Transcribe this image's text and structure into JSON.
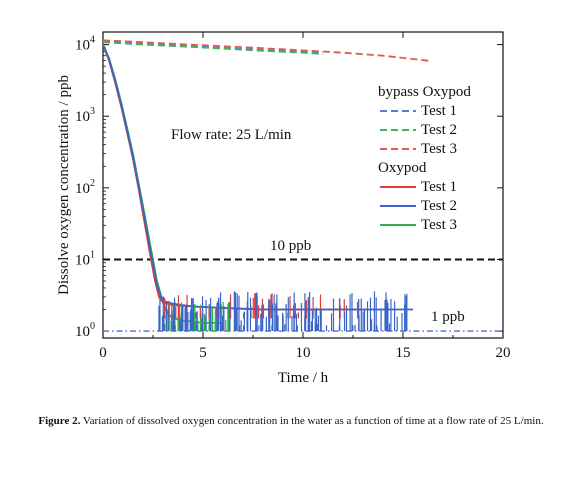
{
  "chart_data": {
    "type": "line",
    "xlabel": "Time / h",
    "ylabel": "Dissolve oxygen concentration / ppb",
    "xlim": [
      0,
      20
    ],
    "ylim": [
      0.8,
      15000
    ],
    "yscale": "log",
    "xticks": [
      0,
      5,
      10,
      15,
      20
    ],
    "yticks": [
      {
        "value": 1,
        "base": "10",
        "exp": "0"
      },
      {
        "value": 10,
        "base": "10",
        "exp": "1"
      },
      {
        "value": 100,
        "base": "10",
        "exp": "2"
      },
      {
        "value": 1000,
        "base": "10",
        "exp": "3"
      },
      {
        "value": 10000,
        "base": "10",
        "exp": "4"
      }
    ],
    "grid": false,
    "legend_position": "top-right",
    "annotations": {
      "flow_rate": "Flow rate: 25 L/min",
      "ten_ppb": "10 ppb",
      "one_ppb": "1 ppb"
    },
    "reference_lines": [
      {
        "y": 10,
        "color": "#111111",
        "style": "dashed"
      },
      {
        "y": 1,
        "color": "#4a6fd6",
        "style": "dashdot"
      }
    ],
    "legend_groups": [
      {
        "title": "bypass Oxypod",
        "entries": [
          {
            "name": "Test 1",
            "color": "#4f7fd0",
            "style": "dashed"
          },
          {
            "name": "Test 2",
            "color": "#3fb25a",
            "style": "dashed"
          },
          {
            "name": "Test 3",
            "color": "#e0584f",
            "style": "dashed"
          }
        ]
      },
      {
        "title": "Oxypod",
        "entries": [
          {
            "name": "Test 1",
            "color": "#e03b3b",
            "style": "solid"
          },
          {
            "name": "Test 2",
            "color": "#3a64c8",
            "style": "solid"
          },
          {
            "name": "Test 3",
            "color": "#2fae4a",
            "style": "solid"
          }
        ]
      }
    ],
    "series": [
      {
        "group": "bypass Oxypod",
        "name": "Test 1",
        "color": "#4f7fd0",
        "style": "dashed",
        "x": [
          0,
          2,
          4,
          6,
          8,
          10,
          11
        ],
        "y": [
          11000,
          10200,
          9600,
          9000,
          8400,
          7900,
          7600
        ]
      },
      {
        "group": "bypass Oxypod",
        "name": "Test 2",
        "color": "#3fb25a",
        "style": "dashed",
        "x": [
          0,
          2,
          4,
          6,
          8,
          10,
          11
        ],
        "y": [
          10800,
          10000,
          9400,
          8800,
          8200,
          7700,
          7400
        ]
      },
      {
        "group": "bypass Oxypod",
        "name": "Test 3",
        "color": "#e0584f",
        "style": "dashed",
        "x": [
          0,
          2,
          4,
          6,
          8,
          10,
          12,
          14,
          16.4
        ],
        "y": [
          11500,
          10800,
          10100,
          9500,
          8900,
          8300,
          7700,
          7000,
          5900
        ]
      },
      {
        "group": "Oxypod",
        "name": "Test 1",
        "color": "#e03b3b",
        "style": "solid",
        "x": [
          0,
          0.3,
          0.6,
          0.9,
          1.2,
          1.5,
          1.8,
          2.1,
          2.4,
          2.6,
          2.8,
          3.0,
          3.5,
          4.5,
          6,
          8,
          10,
          12,
          13
        ],
        "y": [
          10000,
          6000,
          3000,
          1400,
          600,
          250,
          90,
          30,
          10,
          5,
          3,
          2.5,
          2.3,
          2.2,
          2.1,
          2.0,
          2.0,
          2.0,
          2.0
        ]
      },
      {
        "group": "Oxypod",
        "name": "Test 2",
        "color": "#3a64c8",
        "style": "solid",
        "x": [
          0,
          0.3,
          0.6,
          0.9,
          1.2,
          1.5,
          1.8,
          2.1,
          2.4,
          2.7,
          2.9,
          3.1,
          3.5,
          4.5,
          6,
          8,
          10,
          12,
          14,
          15.5
        ],
        "y": [
          10000,
          6200,
          3200,
          1500,
          650,
          270,
          100,
          35,
          12,
          4.5,
          3,
          2.6,
          2.4,
          2.2,
          2.1,
          2.0,
          2.0,
          2.0,
          2.0,
          2.0
        ]
      },
      {
        "group": "Oxypod",
        "name": "Test 3",
        "color": "#2fae4a",
        "style": "solid",
        "x": [
          0,
          0.3,
          0.6,
          0.9,
          1.2,
          1.5,
          1.8,
          2.1,
          2.4,
          2.7,
          3.0,
          3.2,
          3.5,
          4.0,
          5.0,
          6.0
        ],
        "y": [
          10000,
          6500,
          3400,
          1600,
          700,
          300,
          110,
          40,
          14,
          5,
          2.5,
          1.8,
          1.5,
          1.4,
          1.3,
          1.3
        ]
      }
    ]
  },
  "caption": {
    "label": "Figure 2.",
    "text": " Variation of dissolved oxygen concentration in the water as a function of time at a flow rate of 25 L/min."
  }
}
